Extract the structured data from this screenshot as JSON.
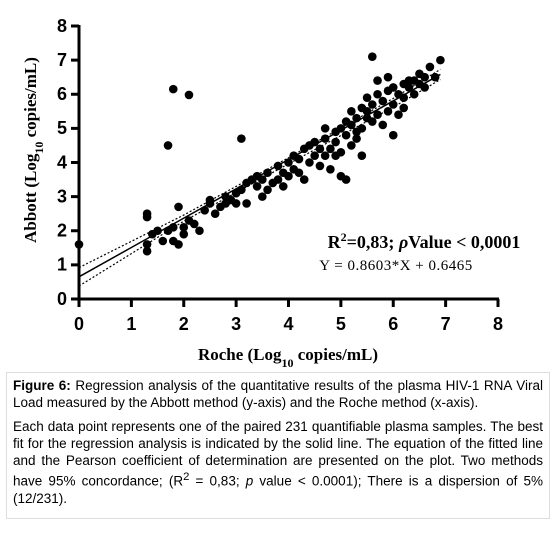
{
  "chart_data": {
    "type": "scatter",
    "x_label": [
      "Roche (Log",
      "10",
      " copies/mL)"
    ],
    "y_label": [
      "Abbott (Log",
      "10",
      " copies/mL)"
    ],
    "annotations": {
      "r2": [
        "R",
        "2",
        "=0,83; ",
        "ρ",
        "Value < 0,0001"
      ],
      "equation": "Y = 0.8603*X + 0.6465"
    },
    "xlim": [
      0,
      8
    ],
    "ylim": [
      0,
      8
    ],
    "xticks": [
      0,
      1,
      2,
      3,
      4,
      5,
      6,
      7,
      8
    ],
    "yticks": [
      0,
      1,
      2,
      3,
      4,
      5,
      6,
      7,
      8
    ],
    "x": [
      0,
      1.3,
      1.3,
      1.3,
      1.3,
      1.4,
      1.5,
      1.6,
      1.7,
      1.8,
      2.1,
      1.9,
      1.8,
      1.9,
      1.7,
      1.8,
      2.0,
      2.0,
      2.1,
      2.2,
      2.3,
      2.4,
      2.5,
      2.6,
      2.7,
      2.8,
      2.9,
      3.0,
      3.0,
      3.1,
      3.1,
      3.2,
      3.3,
      3.4,
      3.5,
      3.5,
      3.6,
      3.7,
      3.8,
      3.9,
      4.0,
      4.0,
      4.1,
      4.2,
      4.2,
      4.3,
      4.4,
      4.5,
      4.5,
      4.6,
      4.7,
      4.7,
      4.8,
      4.8,
      4.9,
      4.9,
      5.0,
      5.0,
      5.0,
      5.1,
      5.1,
      5.2,
      5.2,
      5.3,
      5.3,
      5.4,
      5.4,
      5.5,
      5.5,
      5.6,
      5.6,
      5.6,
      5.7,
      5.7,
      5.8,
      5.8,
      5.9,
      5.9,
      6.0,
      6.0,
      6.0,
      6.1,
      6.1,
      6.2,
      6.2,
      6.3,
      6.4,
      6.4,
      6.5,
      6.6,
      6.7,
      6.8,
      6.9,
      6.5,
      5.7,
      5.4,
      4.6,
      3.9,
      4.3,
      2.5,
      3.2,
      3.6,
      4.4,
      4.7,
      5.1,
      5.3,
      5.5,
      5.9,
      6.3,
      6.6,
      3.8,
      4.1,
      2.8,
      3.4,
      4.9,
      5.2,
      6.2
    ],
    "series": [
      {
        "color": "#000000",
        "values": [
          1.6,
          2.5,
          2.4,
          1.6,
          1.4,
          1.9,
          2.0,
          1.7,
          4.5,
          6.15,
          5.98,
          2.7,
          1.7,
          1.6,
          2.0,
          2.1,
          2.1,
          1.9,
          2.3,
          2.2,
          2.0,
          2.6,
          2.9,
          2.5,
          2.7,
          2.8,
          2.9,
          2.8,
          3.1,
          3.2,
          4.7,
          2.8,
          3.5,
          3.3,
          3.0,
          3.5,
          3.7,
          3.4,
          3.5,
          3.7,
          4.0,
          3.6,
          3.8,
          4.1,
          3.7,
          4.4,
          4.0,
          4.6,
          4.2,
          3.9,
          4.2,
          4.7,
          4.4,
          3.8,
          4.9,
          4.6,
          5.0,
          4.3,
          3.6,
          3.5,
          4.8,
          5.1,
          4.5,
          5.3,
          4.7,
          5.0,
          5.6,
          5.5,
          5.9,
          7.1,
          5.7,
          5.2,
          6.0,
          5.4,
          5.8,
          5.1,
          6.1,
          5.5,
          6.2,
          5.7,
          4.8,
          6.0,
          5.4,
          6.3,
          5.9,
          6.2,
          6.4,
          6.0,
          6.6,
          6.2,
          6.8,
          6.5,
          7.0,
          6.3,
          6.4,
          4.2,
          4.4,
          3.3,
          3.5,
          2.8,
          3.4,
          3.2,
          4.5,
          5.0,
          5.2,
          4.9,
          5.3,
          6.5,
          6.4,
          6.5,
          3.9,
          4.2,
          3.0,
          3.6,
          4.2,
          5.5,
          5.6
        ]
      }
    ],
    "fit": {
      "x": [
        0,
        6.9
      ],
      "y": [
        0.65,
        6.58
      ]
    },
    "ci_upper": {
      "x": [
        0,
        2,
        4,
        6,
        6.9
      ],
      "y": [
        0.92,
        2.46,
        4.14,
        5.88,
        6.73
      ]
    },
    "ci_lower": {
      "x": [
        0,
        2,
        4,
        6,
        6.9
      ],
      "y": [
        0.38,
        2.28,
        3.96,
        5.62,
        6.43
      ]
    }
  },
  "caption": {
    "label": "Figure 6:",
    "text": "Regression analysis of the quantitative results of the plasma HIV-1 RNA Viral Load measured by the Abbott method (y-axis) and the Roche method (x-axis)."
  },
  "body": [
    "Each data point represents one of the paired 231 quantifiable plasma samples. The best fit for the regression analysis is indicated by the solid line. The equation of the fitted line and the Pearson coefficient of determination are presented on the plot. Two methods have 95% concordance; (R",
    "2",
    " = 0,83; ",
    "p",
    " value < 0.0001); There is a dispersion of 5% (12/231)."
  ]
}
